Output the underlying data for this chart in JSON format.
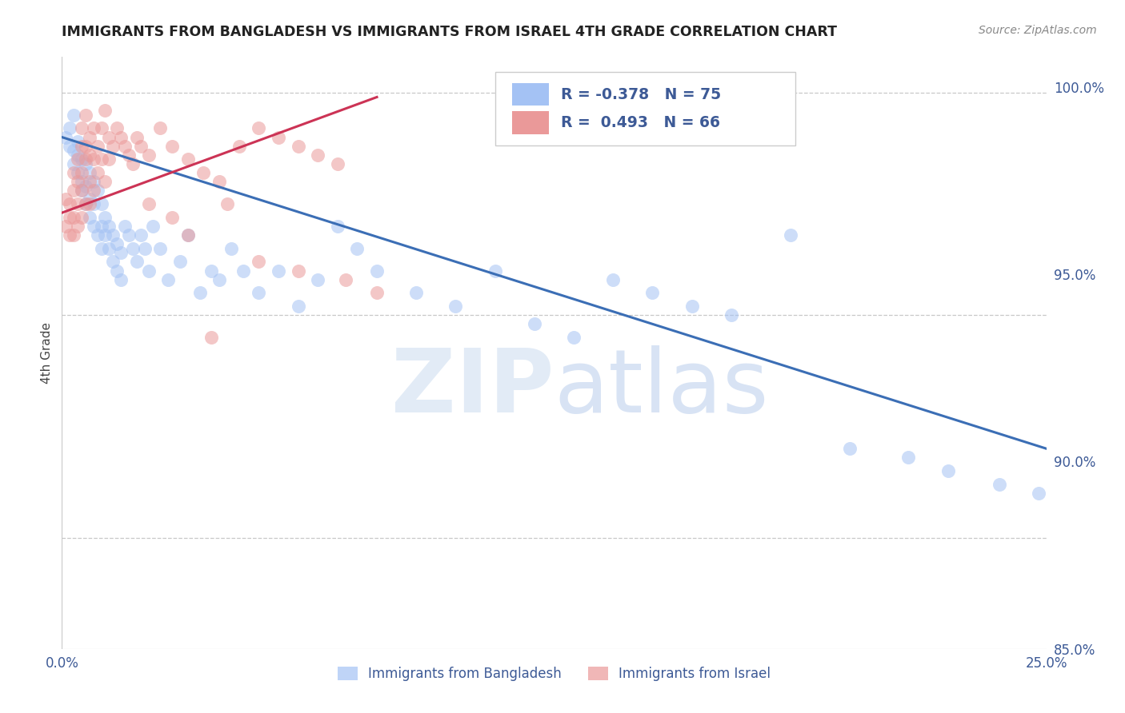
{
  "title": "IMMIGRANTS FROM BANGLADESH VS IMMIGRANTS FROM ISRAEL 4TH GRADE CORRELATION CHART",
  "source": "Source: ZipAtlas.com",
  "ylabel": "4th Grade",
  "xlim": [
    0.0,
    0.25
  ],
  "ylim": [
    0.875,
    1.008
  ],
  "xtick_positions": [
    0.0,
    0.05,
    0.1,
    0.15,
    0.2,
    0.25
  ],
  "xtick_labels": [
    "0.0%",
    "",
    "",
    "",
    "",
    "25.0%"
  ],
  "ytick_positions_right": [
    1.0,
    0.95,
    0.9,
    0.85
  ],
  "ytick_labels_right": [
    "100.0%",
    "95.0%",
    "90.0%",
    "85.0%"
  ],
  "legend_blue_R": "-0.378",
  "legend_blue_N": "75",
  "legend_pink_R": "0.493",
  "legend_pink_N": "66",
  "color_blue": "#a4c2f4",
  "color_pink": "#ea9999",
  "color_blue_line": "#3b6eb5",
  "color_pink_line": "#cc3355",
  "color_text_blue": "#3d5a96",
  "background_color": "#ffffff",
  "grid_color": "#c8c8c8",
  "watermark_zip": "ZIP",
  "watermark_atlas": "atlas",
  "blue_scatter_x": [
    0.001,
    0.002,
    0.002,
    0.003,
    0.003,
    0.003,
    0.004,
    0.004,
    0.004,
    0.005,
    0.005,
    0.005,
    0.006,
    0.006,
    0.006,
    0.007,
    0.007,
    0.007,
    0.008,
    0.008,
    0.008,
    0.009,
    0.009,
    0.01,
    0.01,
    0.01,
    0.011,
    0.011,
    0.012,
    0.012,
    0.013,
    0.013,
    0.014,
    0.014,
    0.015,
    0.015,
    0.016,
    0.017,
    0.018,
    0.019,
    0.02,
    0.021,
    0.022,
    0.023,
    0.025,
    0.027,
    0.03,
    0.032,
    0.035,
    0.038,
    0.04,
    0.043,
    0.046,
    0.05,
    0.055,
    0.06,
    0.065,
    0.07,
    0.075,
    0.08,
    0.09,
    0.1,
    0.11,
    0.12,
    0.13,
    0.14,
    0.15,
    0.16,
    0.17,
    0.185,
    0.2,
    0.215,
    0.225,
    0.238,
    0.248
  ],
  "blue_scatter_y": [
    0.99,
    0.992,
    0.988,
    0.987,
    0.984,
    0.995,
    0.989,
    0.986,
    0.982,
    0.985,
    0.98,
    0.978,
    0.984,
    0.979,
    0.975,
    0.982,
    0.976,
    0.972,
    0.98,
    0.975,
    0.97,
    0.978,
    0.968,
    0.975,
    0.97,
    0.965,
    0.972,
    0.968,
    0.97,
    0.965,
    0.968,
    0.962,
    0.966,
    0.96,
    0.964,
    0.958,
    0.97,
    0.968,
    0.965,
    0.962,
    0.968,
    0.965,
    0.96,
    0.97,
    0.965,
    0.958,
    0.962,
    0.968,
    0.955,
    0.96,
    0.958,
    0.965,
    0.96,
    0.955,
    0.96,
    0.952,
    0.958,
    0.97,
    0.965,
    0.96,
    0.955,
    0.952,
    0.96,
    0.948,
    0.945,
    0.958,
    0.955,
    0.952,
    0.95,
    0.968,
    0.92,
    0.918,
    0.915,
    0.912,
    0.91
  ],
  "pink_scatter_x": [
    0.001,
    0.001,
    0.002,
    0.002,
    0.002,
    0.003,
    0.003,
    0.003,
    0.003,
    0.004,
    0.004,
    0.004,
    0.004,
    0.005,
    0.005,
    0.005,
    0.005,
    0.005,
    0.006,
    0.006,
    0.006,
    0.006,
    0.007,
    0.007,
    0.007,
    0.007,
    0.008,
    0.008,
    0.008,
    0.009,
    0.009,
    0.01,
    0.01,
    0.011,
    0.011,
    0.012,
    0.012,
    0.013,
    0.014,
    0.015,
    0.016,
    0.017,
    0.018,
    0.019,
    0.02,
    0.022,
    0.025,
    0.028,
    0.032,
    0.036,
    0.04,
    0.045,
    0.05,
    0.055,
    0.06,
    0.065,
    0.07,
    0.022,
    0.028,
    0.032,
    0.038,
    0.042,
    0.05,
    0.06,
    0.072,
    0.08
  ],
  "pink_scatter_y": [
    0.97,
    0.976,
    0.972,
    0.968,
    0.975,
    0.972,
    0.978,
    0.982,
    0.968,
    0.975,
    0.98,
    0.985,
    0.97,
    0.982,
    0.988,
    0.992,
    0.978,
    0.972,
    0.985,
    0.988,
    0.995,
    0.975,
    0.99,
    0.986,
    0.98,
    0.975,
    0.992,
    0.985,
    0.978,
    0.988,
    0.982,
    0.992,
    0.985,
    0.996,
    0.98,
    0.99,
    0.985,
    0.988,
    0.992,
    0.99,
    0.988,
    0.986,
    0.984,
    0.99,
    0.988,
    0.986,
    0.992,
    0.988,
    0.985,
    0.982,
    0.98,
    0.988,
    0.992,
    0.99,
    0.988,
    0.986,
    0.984,
    0.975,
    0.972,
    0.968,
    0.945,
    0.975,
    0.962,
    0.96,
    0.958,
    0.955
  ]
}
